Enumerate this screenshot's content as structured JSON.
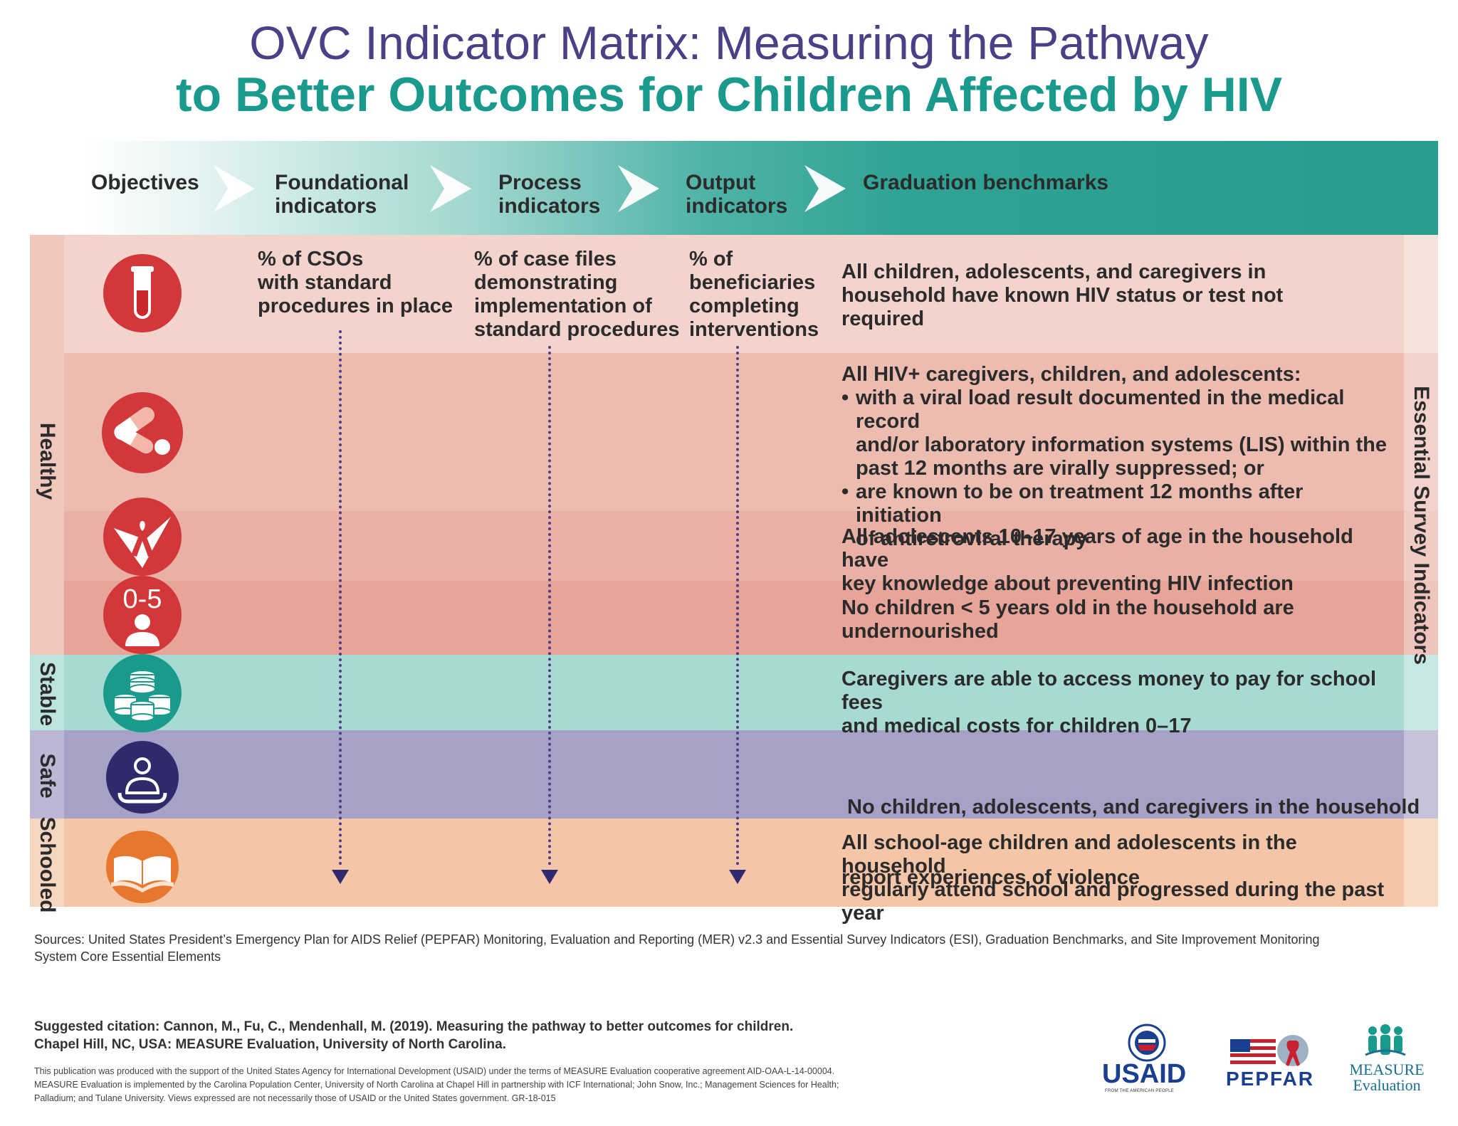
{
  "title": {
    "line1": "OVC Indicator Matrix: Measuring the Pathway",
    "line2": "to Better Outcomes for Children Affected by HIV"
  },
  "header": {
    "objectives": "Objectives",
    "foundational": [
      "Foundational",
      "indicators"
    ],
    "process": [
      "Process",
      "indicators"
    ],
    "output": [
      "Output",
      "indicators"
    ],
    "graduation": "Graduation benchmarks"
  },
  "indicators": {
    "foundational": [
      "% of CSOs",
      "with standard",
      "procedures in place"
    ],
    "process": [
      "% of case files",
      "demonstrating",
      "implementation of",
      "standard procedures"
    ],
    "output": [
      "% of",
      "beneficiaries",
      "completing",
      "interventions"
    ]
  },
  "categories": {
    "healthy": "Healthy",
    "stable": "Stable",
    "safe": "Safe",
    "schooled": "Schooled"
  },
  "side_label": "Essential Survey Indicators",
  "icons": {
    "row1": "blood-test-tube-icon",
    "row2": "pills-capsules-icon",
    "row3": "hiv-ribbon-icon",
    "row4": "child-0-5-icon",
    "row4_text": "0-5",
    "row5": "coins-stack-icon",
    "row6": "protected-person-icon",
    "row7": "open-book-icon"
  },
  "benchmarks": {
    "row1": [
      "All children, adolescents, and caregivers in",
      "household have known HIV status or test not",
      "required"
    ],
    "row2_intro": "All HIV+ caregivers, children, and adolescents:",
    "row2_bullet1": [
      "with a viral load result documented in the medical record",
      "and/or laboratory information systems (LIS) within the",
      "past 12 months are virally suppressed; or"
    ],
    "row2_bullet2": [
      "are known to be on treatment 12 months after initiation",
      "of antiretroviral therapy"
    ],
    "row3": [
      "All adolescents 10–17 years of age in the household have",
      "key knowledge about preventing HIV infection"
    ],
    "row4": [
      "No children < 5 years old in the household are",
      "undernourished"
    ],
    "row5": [
      "Caregivers are able to access money to pay for school fees",
      "and medical costs for children 0–17"
    ],
    "row6": [
      " No children, adolescents, and caregivers in the household",
      "report experiences of violence"
    ],
    "row7": [
      "All school-age children and adolescents in the household",
      "regularly attend school and progressed during the past",
      "year"
    ]
  },
  "footer": {
    "sources": [
      "Sources:  United States President’s Emergency Plan for AIDS Relief (PEPFAR) Monitoring, Evaluation and Reporting (MER) v2.3  and Essential Survey Indicators (ESI), Graduation Benchmarks, and Site Improvement Monitoring",
      "System Core Essential Elements"
    ],
    "citation": [
      "Suggested citation: Cannon, M., Fu, C., Mendenhall, M. (2019). Measuring the pathway to better outcomes for children.",
      "Chapel Hill, NC, USA: MEASURE Evaluation, University of North Carolina."
    ],
    "disclaimer": [
      "This publication was produced with the support of the United States Agency for International Development (USAID) under the terms of MEASURE Evaluation cooperative agreement AID-OAA-L-14-00004.",
      "MEASURE Evaluation is implemented by the Carolina Population Center, University of North Carolina at Chapel Hill in partnership with ICF International; John Snow, Inc.; Management Sciences for Health;",
      "Palladium; and Tulane University. Views expressed are not necessarily those of USAID or the United States government. GR-18-015"
    ]
  },
  "logos": {
    "usaid": "USAID",
    "usaid_sub": "FROM THE AMERICAN PEOPLE",
    "pepfar": "PEPFAR",
    "measure": [
      "MEASURE",
      "Evaluation"
    ]
  },
  "colors": {
    "title_purple": "#4b3f85",
    "title_teal": "#1a9a8c",
    "header_teal": "#279d8f",
    "healthy_light": "#f3d4cc",
    "healthy_mid": "#ecbcb1",
    "healthy_dark": "#e6a598",
    "stable": "#a8dad4",
    "safe": "#a6a1c6",
    "schooled": "#f4c6a7",
    "icon_red": "#d2373a",
    "icon_teal": "#1a9a8c",
    "icon_navy": "#2e2a6b",
    "icon_orange": "#e8772e"
  }
}
